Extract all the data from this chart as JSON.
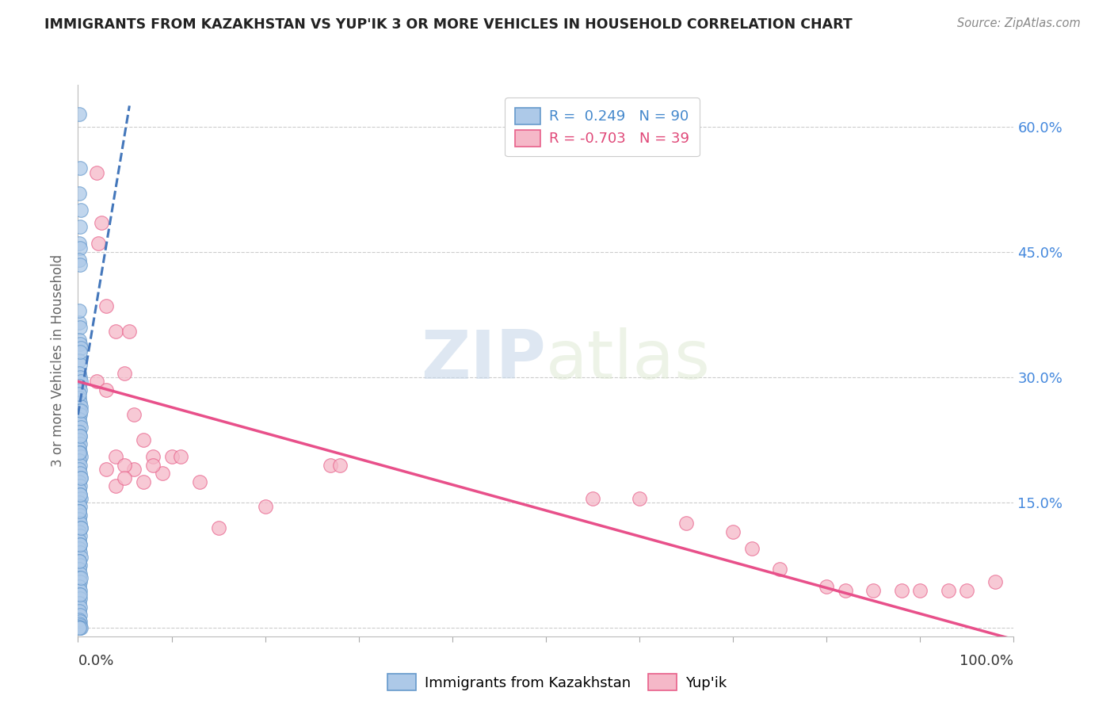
{
  "title": "IMMIGRANTS FROM KAZAKHSTAN VS YUP'IK 3 OR MORE VEHICLES IN HOUSEHOLD CORRELATION CHART",
  "source": "Source: ZipAtlas.com",
  "ylabel": "3 or more Vehicles in Household",
  "yticks": [
    0.0,
    0.15,
    0.3,
    0.45,
    0.6
  ],
  "ytick_labels": [
    "",
    "15.0%",
    "30.0%",
    "45.0%",
    "60.0%"
  ],
  "watermark_zip": "ZIP",
  "watermark_atlas": "atlas",
  "blue_color": "#adc9e8",
  "pink_color": "#f5b8c8",
  "blue_edge_color": "#6699cc",
  "pink_edge_color": "#e8608a",
  "blue_line_color": "#4477bb",
  "pink_line_color": "#e8508a",
  "blue_scatter": [
    [
      0.001,
      0.615
    ],
    [
      0.001,
      0.46
    ],
    [
      0.002,
      0.455
    ],
    [
      0.001,
      0.44
    ],
    [
      0.002,
      0.435
    ],
    [
      0.001,
      0.365
    ],
    [
      0.002,
      0.36
    ],
    [
      0.001,
      0.345
    ],
    [
      0.002,
      0.34
    ],
    [
      0.003,
      0.335
    ],
    [
      0.001,
      0.32
    ],
    [
      0.002,
      0.315
    ],
    [
      0.001,
      0.305
    ],
    [
      0.002,
      0.3
    ],
    [
      0.003,
      0.295
    ],
    [
      0.001,
      0.29
    ],
    [
      0.002,
      0.285
    ],
    [
      0.001,
      0.275
    ],
    [
      0.002,
      0.27
    ],
    [
      0.003,
      0.265
    ],
    [
      0.001,
      0.26
    ],
    [
      0.002,
      0.255
    ],
    [
      0.001,
      0.25
    ],
    [
      0.002,
      0.245
    ],
    [
      0.003,
      0.24
    ],
    [
      0.001,
      0.235
    ],
    [
      0.002,
      0.23
    ],
    [
      0.001,
      0.225
    ],
    [
      0.002,
      0.22
    ],
    [
      0.001,
      0.215
    ],
    [
      0.002,
      0.21
    ],
    [
      0.003,
      0.205
    ],
    [
      0.001,
      0.2
    ],
    [
      0.002,
      0.195
    ],
    [
      0.001,
      0.19
    ],
    [
      0.002,
      0.185
    ],
    [
      0.003,
      0.18
    ],
    [
      0.001,
      0.175
    ],
    [
      0.002,
      0.17
    ],
    [
      0.001,
      0.165
    ],
    [
      0.002,
      0.16
    ],
    [
      0.003,
      0.155
    ],
    [
      0.001,
      0.15
    ],
    [
      0.002,
      0.145
    ],
    [
      0.001,
      0.14
    ],
    [
      0.002,
      0.135
    ],
    [
      0.001,
      0.13
    ],
    [
      0.002,
      0.125
    ],
    [
      0.003,
      0.12
    ],
    [
      0.001,
      0.115
    ],
    [
      0.002,
      0.11
    ],
    [
      0.001,
      0.105
    ],
    [
      0.002,
      0.1
    ],
    [
      0.001,
      0.095
    ],
    [
      0.002,
      0.09
    ],
    [
      0.003,
      0.085
    ],
    [
      0.001,
      0.08
    ],
    [
      0.002,
      0.075
    ],
    [
      0.001,
      0.07
    ],
    [
      0.002,
      0.065
    ],
    [
      0.001,
      0.06
    ],
    [
      0.002,
      0.055
    ],
    [
      0.001,
      0.05
    ],
    [
      0.002,
      0.045
    ],
    [
      0.001,
      0.04
    ],
    [
      0.002,
      0.035
    ],
    [
      0.001,
      0.03
    ],
    [
      0.002,
      0.025
    ],
    [
      0.001,
      0.02
    ],
    [
      0.002,
      0.015
    ],
    [
      0.001,
      0.01
    ],
    [
      0.002,
      0.008
    ],
    [
      0.001,
      0.005
    ],
    [
      0.002,
      0.003
    ],
    [
      0.001,
      0.001
    ],
    [
      0.002,
      0.0
    ],
    [
      0.003,
      0.0
    ],
    [
      0.001,
      0.0
    ],
    [
      0.002,
      0.55
    ],
    [
      0.001,
      0.52
    ],
    [
      0.002,
      0.48
    ],
    [
      0.003,
      0.5
    ],
    [
      0.001,
      0.38
    ],
    [
      0.002,
      0.33
    ],
    [
      0.001,
      0.28
    ],
    [
      0.003,
      0.26
    ],
    [
      0.002,
      0.23
    ],
    [
      0.001,
      0.21
    ],
    [
      0.003,
      0.18
    ],
    [
      0.002,
      0.16
    ],
    [
      0.001,
      0.14
    ],
    [
      0.003,
      0.12
    ],
    [
      0.002,
      0.1
    ],
    [
      0.001,
      0.08
    ],
    [
      0.003,
      0.06
    ],
    [
      0.002,
      0.04
    ]
  ],
  "pink_scatter": [
    [
      0.02,
      0.545
    ],
    [
      0.025,
      0.485
    ],
    [
      0.022,
      0.46
    ],
    [
      0.03,
      0.385
    ],
    [
      0.04,
      0.355
    ],
    [
      0.05,
      0.305
    ],
    [
      0.055,
      0.355
    ],
    [
      0.02,
      0.295
    ],
    [
      0.03,
      0.285
    ],
    [
      0.06,
      0.255
    ],
    [
      0.07,
      0.225
    ],
    [
      0.04,
      0.205
    ],
    [
      0.08,
      0.205
    ],
    [
      0.03,
      0.19
    ],
    [
      0.06,
      0.19
    ],
    [
      0.09,
      0.185
    ],
    [
      0.04,
      0.17
    ],
    [
      0.07,
      0.175
    ],
    [
      0.05,
      0.195
    ],
    [
      0.08,
      0.195
    ],
    [
      0.1,
      0.205
    ],
    [
      0.11,
      0.205
    ],
    [
      0.05,
      0.18
    ],
    [
      0.13,
      0.175
    ],
    [
      0.27,
      0.195
    ],
    [
      0.28,
      0.195
    ],
    [
      0.2,
      0.145
    ],
    [
      0.15,
      0.12
    ],
    [
      0.55,
      0.155
    ],
    [
      0.6,
      0.155
    ],
    [
      0.65,
      0.125
    ],
    [
      0.7,
      0.115
    ],
    [
      0.72,
      0.095
    ],
    [
      0.75,
      0.07
    ],
    [
      0.8,
      0.05
    ],
    [
      0.82,
      0.045
    ],
    [
      0.85,
      0.045
    ],
    [
      0.88,
      0.045
    ],
    [
      0.9,
      0.045
    ],
    [
      0.93,
      0.045
    ],
    [
      0.95,
      0.045
    ],
    [
      0.98,
      0.055
    ]
  ],
  "blue_trend_x": [
    0.0,
    0.055
  ],
  "blue_trend_y": [
    0.255,
    0.625
  ],
  "pink_trend_x": [
    0.0,
    1.02
  ],
  "pink_trend_y": [
    0.295,
    -0.02
  ],
  "xmin": 0.0,
  "xmax": 1.0,
  "ymin": -0.01,
  "ymax": 0.65,
  "figsize": [
    14.06,
    8.92
  ],
  "dpi": 100
}
